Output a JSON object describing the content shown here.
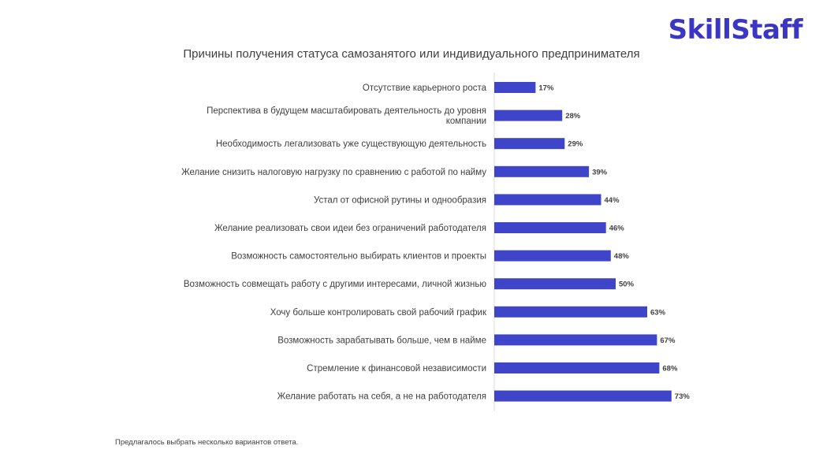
{
  "brand": {
    "logo_text": "SkillStaff",
    "logo_color": "#3b36c4"
  },
  "footnote": "Предлагалось выбрать несколько вариантов ответа.",
  "chart_data": {
    "type": "bar",
    "orientation": "horizontal",
    "title": "Причины получения статуса самозанятого или индивидуального предпринимателя",
    "bar_color": "#3f45c8",
    "value_suffix": "%",
    "xlim": [
      0,
      100
    ],
    "grid": false,
    "categories": [
      [
        "Отсутствие карьерного роста"
      ],
      [
        "Перспектива в будущем масштабировать деятельность до уровня",
        "компании"
      ],
      [
        "Необходимость легализовать уже существующую деятельность"
      ],
      [
        "Желание снизить налоговую нагрузку по сравнению с работой по найму"
      ],
      [
        "Устал от офисной рутины и однообразия"
      ],
      [
        "Желание реализовать свои идеи без ограничений работодателя"
      ],
      [
        "Возможность самостоятельно выбирать клиентов и проекты"
      ],
      [
        "Возможность совмещать работу с другими интересами, личной жизнью"
      ],
      [
        "Хочу больше контролировать свой рабочий график"
      ],
      [
        "Возможность зарабатывать больше, чем в найме"
      ],
      [
        "Стремление к финансовой независимости"
      ],
      [
        "Желание работать на себя, а не на работодателя"
      ]
    ],
    "values": [
      17,
      28,
      29,
      39,
      44,
      46,
      48,
      50,
      63,
      67,
      68,
      73
    ]
  }
}
